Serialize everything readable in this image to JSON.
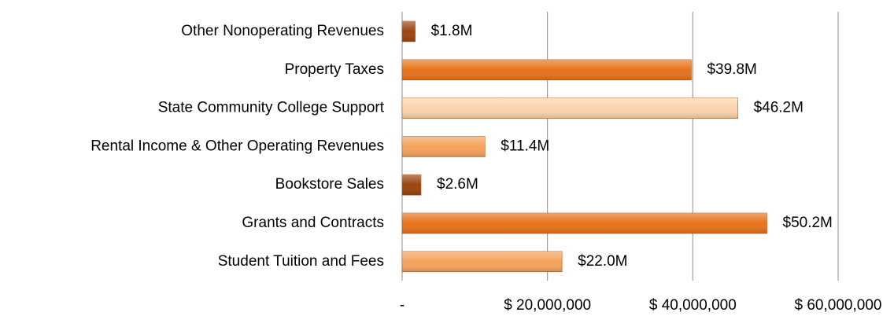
{
  "chart_data": {
    "type": "hbar",
    "categories": [
      "Other Nonoperating Revenues",
      "Property Taxes",
      "State Community College Support",
      "Rental Income & Other Operating Revenues",
      "Bookstore Sales",
      "Grants and Contracts",
      "Student Tuition and Fees"
    ],
    "values": [
      1800000,
      39800000,
      46200000,
      11400000,
      2600000,
      50200000,
      22000000
    ],
    "value_labels": [
      "$1.8M",
      "$39.8M",
      "$46.2M",
      "$11.4M",
      "$2.6M",
      "$50.2M",
      "$22.0M"
    ],
    "colors": [
      "#9a4510",
      "#e8731c",
      "#fbd3ab",
      "#f5a35c",
      "#9a4510",
      "#e8731c",
      "#f5a35c"
    ],
    "xlim": [
      0,
      60000000
    ],
    "xticks": [
      {
        "value": 0,
        "label": "-"
      },
      {
        "value": 20000000,
        "label": "$ 20,000,000"
      },
      {
        "value": 40000000,
        "label": "$ 40,000,000"
      },
      {
        "value": 60000000,
        "label": "$ 60,000,000"
      }
    ],
    "grid": true
  }
}
